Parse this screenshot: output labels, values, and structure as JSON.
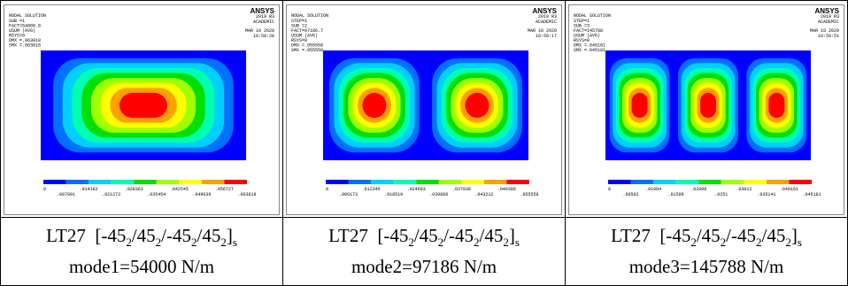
{
  "palette": [
    "#0000ff",
    "#0070ff",
    "#00d0ff",
    "#00ffb0",
    "#00e000",
    "#a0ff00",
    "#ffff00",
    "#ffa000",
    "#ff0000"
  ],
  "panels": [
    {
      "title": "NODAL SOLUTION",
      "info": [
        "SUB =1",
        "FACT=54000.8",
        "USUM     (AVG)",
        "RSYS=0",
        "DMX =.063818",
        "SMX =.063818"
      ],
      "logo": "ANSYS",
      "version": "2019 R3",
      "license": "ACADEMIC",
      "date": "MAR 10 2020",
      "time": "10:58:28",
      "legend": [
        "0",
        ".007091",
        ".014182",
        ".021273",
        ".028363",
        ".035454",
        ".042545",
        ".049636",
        ".056727",
        ".063818"
      ],
      "caption": {
        "label": "LT27",
        "layup": [
          "[-45",
          "2",
          "/45",
          "2",
          "/-45",
          "2",
          "/45",
          "2",
          "]",
          "s"
        ],
        "mode": "mode1=54000 N/m"
      }
    },
    {
      "title": "NODAL SOLUTION",
      "info": [
        "STEP=1",
        "SUB =2",
        "FACT=97186.7",
        "USUM     (AVG)",
        "RSYS=0",
        "DMX =.055558",
        "SMX =.055558"
      ],
      "logo": "ANSYS",
      "version": "2019 R3",
      "license": "ACADEMIC",
      "date": "MAR 10 2020",
      "time": "10:59:17",
      "legend": [
        "0",
        ".006173",
        ".012346",
        ".018519",
        ".024693",
        ".030866",
        ".037039",
        ".043212",
        ".049385",
        ".055558"
      ],
      "caption": {
        "label": "LT27",
        "layup": [
          "[-45",
          "2",
          "/45",
          "2",
          "/-45",
          "2",
          "/45",
          "2",
          "]",
          "s"
        ],
        "mode": "mode2=97186 N/m"
      }
    },
    {
      "title": "NODAL SOLUTION",
      "info": [
        "STEP=1",
        "SUB =3",
        "FACT=145788",
        "USUM     (AVG)",
        "RSYS=0",
        "DMX =.045181",
        "SMX =.045181"
      ],
      "logo": "ANSYS",
      "version": "2019 R3",
      "license": "ACADEMIC",
      "date": "MAR 10 2020",
      "time": "10:59:51",
      "legend": [
        "0",
        ".00502",
        ".01004",
        ".01506",
        ".02008",
        ".0251",
        ".03012",
        ".035141",
        ".040161",
        ".045181"
      ],
      "caption": {
        "label": "LT27",
        "layup": [
          "[-45",
          "2",
          "/45",
          "2",
          "/-45",
          "2",
          "/45",
          "2",
          "]",
          "s"
        ],
        "mode": "mode3=145788 N/m"
      }
    }
  ]
}
